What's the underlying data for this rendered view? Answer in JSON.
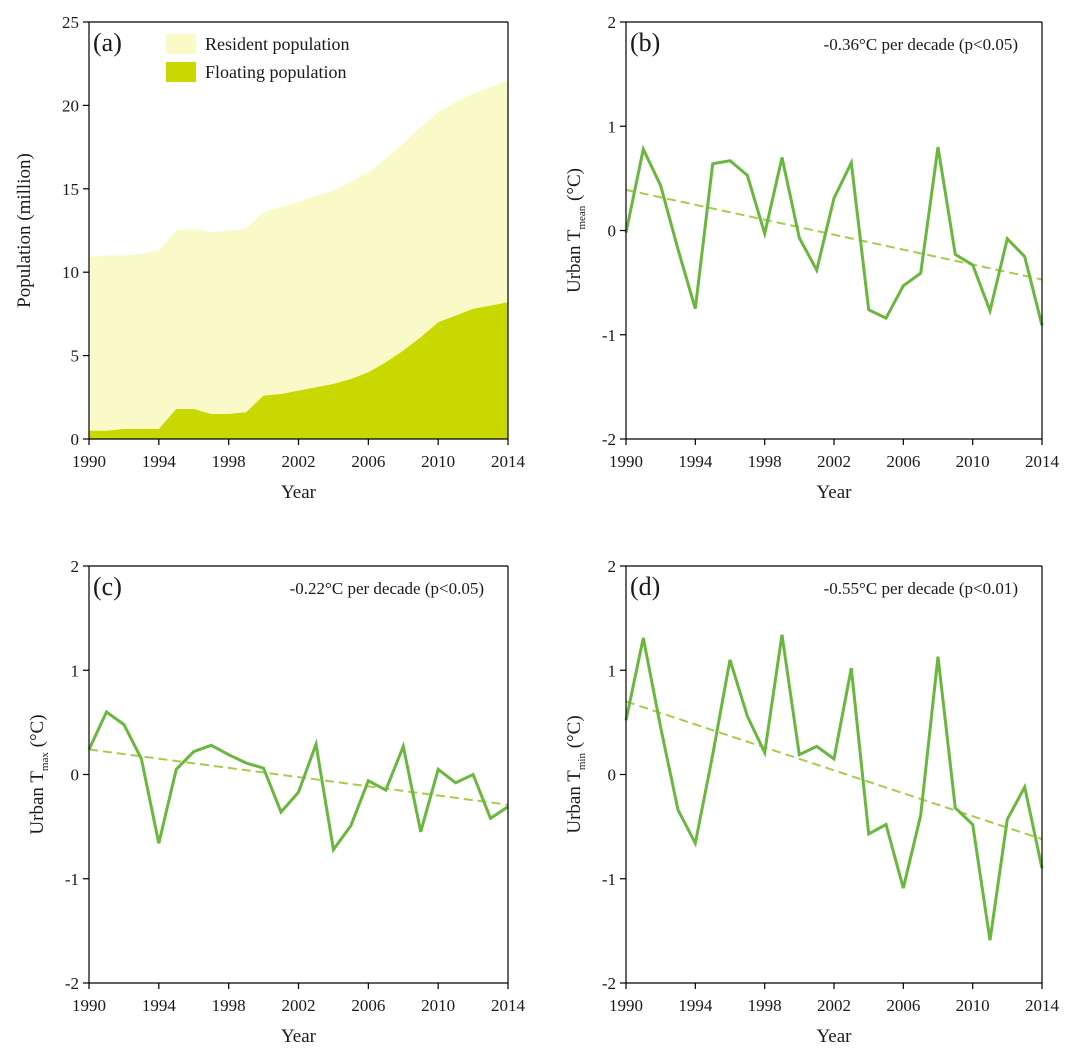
{
  "colors": {
    "resident_fill": "#fafac8",
    "floating_fill": "#c8d800",
    "temp_line": "#6ab73e",
    "trend_line": "#a6cc4a"
  },
  "chart_data": [
    {
      "type": "area",
      "panel": "(a)",
      "xlabel": "Year",
      "ylabel": "Population (million)",
      "xlim": [
        1990,
        2014
      ],
      "ylim": [
        0,
        25
      ],
      "xticks": [
        "1990",
        "1994",
        "1998",
        "2002",
        "2006",
        "2010",
        "2014"
      ],
      "yticks": [
        "0",
        "5",
        "10",
        "15",
        "20",
        "25"
      ],
      "legend_position": "top",
      "x": [
        1990,
        1991,
        1992,
        1993,
        1994,
        1995,
        1996,
        1997,
        1998,
        1999,
        2000,
        2001,
        2002,
        2003,
        2004,
        2005,
        2006,
        2007,
        2008,
        2009,
        2010,
        2011,
        2012,
        2013,
        2014
      ],
      "series": [
        {
          "name": "Resident population",
          "values": [
            10.9,
            11.0,
            11.0,
            11.1,
            11.3,
            12.5,
            12.6,
            12.4,
            12.5,
            12.6,
            13.6,
            13.9,
            14.2,
            14.6,
            14.9,
            15.4,
            16.0,
            16.8,
            17.7,
            18.7,
            19.6,
            20.2,
            20.7,
            21.1,
            21.5
          ]
        },
        {
          "name": "Floating population",
          "values": [
            0.5,
            0.5,
            0.6,
            0.6,
            0.6,
            1.8,
            1.8,
            1.5,
            1.5,
            1.6,
            2.6,
            2.7,
            2.9,
            3.1,
            3.3,
            3.6,
            4.0,
            4.6,
            5.3,
            6.1,
            7.0,
            7.4,
            7.8,
            8.0,
            8.2
          ]
        }
      ]
    },
    {
      "type": "line",
      "panel": "(b)",
      "xlabel": "Year",
      "ylabel_main": "Urban T",
      "ylabel_sub": "mean",
      "ylabel_unit": " (°C)",
      "annotation": "-0.36°C per decade (p<0.05)",
      "xlim": [
        1990,
        2014
      ],
      "ylim": [
        -2,
        2
      ],
      "xticks": [
        "1990",
        "1994",
        "1998",
        "2002",
        "2006",
        "2010",
        "2014"
      ],
      "yticks": [
        "-2",
        "-1",
        "0",
        "1",
        "2"
      ],
      "x": [
        1990,
        1991,
        1992,
        1993,
        1994,
        1995,
        1996,
        1997,
        1998,
        1999,
        2000,
        2001,
        2002,
        2003,
        2004,
        2005,
        2006,
        2007,
        2008,
        2009,
        2010,
        2011,
        2012,
        2013,
        2014
      ],
      "values": [
        -0.02,
        0.78,
        0.43,
        -0.18,
        -0.75,
        0.64,
        0.67,
        0.53,
        -0.03,
        0.7,
        -0.07,
        -0.38,
        0.31,
        0.65,
        -0.76,
        -0.84,
        -0.53,
        -0.41,
        0.8,
        -0.23,
        -0.33,
        -0.77,
        -0.08,
        -0.25,
        -0.91
      ],
      "trend": [
        [
          1990,
          0.39
        ],
        [
          2014,
          -0.47
        ]
      ]
    },
    {
      "type": "line",
      "panel": "(c)",
      "xlabel": "Year",
      "ylabel_main": "Urban T",
      "ylabel_sub": "max",
      "ylabel_unit": " (°C)",
      "annotation": "-0.22°C per decade (p<0.05)",
      "xlim": [
        1990,
        2014
      ],
      "ylim": [
        -2,
        2
      ],
      "xticks": [
        "1990",
        "1994",
        "1998",
        "2002",
        "2006",
        "2010",
        "2014"
      ],
      "yticks": [
        "-2",
        "-1",
        "0",
        "1",
        "2"
      ],
      "x": [
        1990,
        1991,
        1992,
        1993,
        1994,
        1995,
        1996,
        1997,
        1998,
        1999,
        2000,
        2001,
        2002,
        2003,
        2004,
        2005,
        2006,
        2007,
        2008,
        2009,
        2010,
        2011,
        2012,
        2013,
        2014
      ],
      "values": [
        0.24,
        0.6,
        0.48,
        0.15,
        -0.66,
        0.05,
        0.22,
        0.28,
        0.19,
        0.11,
        0.06,
        -0.36,
        -0.17,
        0.29,
        -0.72,
        -0.49,
        -0.06,
        -0.15,
        0.27,
        -0.55,
        0.05,
        -0.08,
        0.0,
        -0.42,
        -0.31
      ],
      "trend": [
        [
          1990,
          0.24
        ],
        [
          2014,
          -0.29
        ]
      ]
    },
    {
      "type": "line",
      "panel": "(d)",
      "xlabel": "Year",
      "ylabel_main": "Urban T",
      "ylabel_sub": "min",
      "ylabel_unit": " (°C)",
      "annotation": "-0.55°C per decade (p<0.01)",
      "xlim": [
        1990,
        2014
      ],
      "ylim": [
        -2,
        2
      ],
      "xticks": [
        "1990",
        "1994",
        "1998",
        "2002",
        "2006",
        "2010",
        "2014"
      ],
      "yticks": [
        "-2",
        "-1",
        "0",
        "1",
        "2"
      ],
      "x": [
        1990,
        1991,
        1992,
        1993,
        1994,
        1995,
        1996,
        1997,
        1998,
        1999,
        2000,
        2001,
        2002,
        2003,
        2004,
        2005,
        2006,
        2007,
        2008,
        2009,
        2010,
        2011,
        2012,
        2013,
        2014
      ],
      "values": [
        0.52,
        1.31,
        0.45,
        -0.34,
        -0.66,
        0.19,
        1.1,
        0.56,
        0.21,
        1.34,
        0.19,
        0.27,
        0.15,
        1.02,
        -0.57,
        -0.48,
        -1.09,
        -0.39,
        1.13,
        -0.32,
        -0.48,
        -1.59,
        -0.43,
        -0.12,
        -0.9
      ],
      "trend": [
        [
          1990,
          0.7
        ],
        [
          2014,
          -0.62
        ]
      ]
    }
  ]
}
